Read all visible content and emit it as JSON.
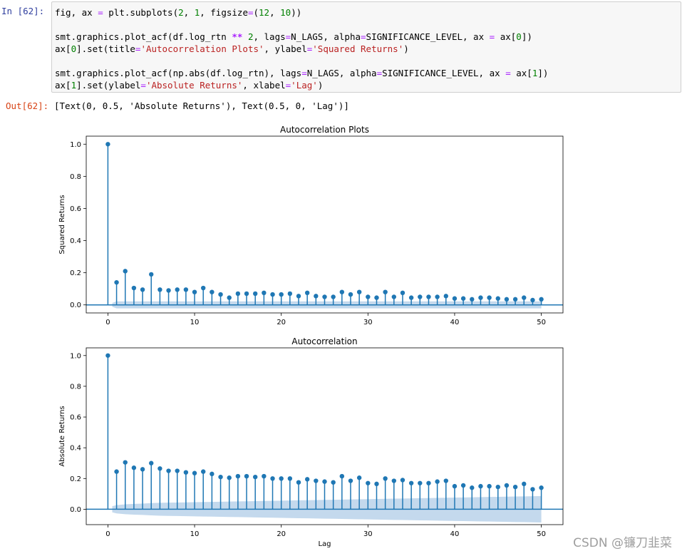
{
  "cell": {
    "in_prompt": "In  [62]:",
    "out_prompt": "Out[62]:",
    "code": {
      "l1": {
        "a": "fig, ax ",
        "b": "=",
        "c": " plt.subplots(",
        "d": "2",
        "e": ", ",
        "f": "1",
        "g": ", figsize",
        "h": "=",
        "i": "(",
        "j": "12",
        "k": ", ",
        "l": "10",
        "m": "))"
      },
      "l3": {
        "a": "smt.graphics.plot_acf(df.log_rtn ",
        "b": "**",
        "c": " ",
        "d": "2",
        "e": ", lags",
        "f": "=",
        "g": "N_LAGS, alpha",
        "h": "=",
        "i": "SIGNIFICANCE_LEVEL, ax ",
        "j": "=",
        "k": " ax[",
        "l": "0",
        "m": "])"
      },
      "l4": {
        "a": "ax[",
        "b": "0",
        "c": "].set(title",
        "d": "=",
        "e": "'Autocorrelation Plots'",
        "f": ", ylabel",
        "g": "=",
        "h": "'Squared Returns'",
        "i": ")"
      },
      "l6": {
        "a": "smt.graphics.plot_acf(np.abs(df.log_rtn), lags",
        "b": "=",
        "c": "N_LAGS, alpha",
        "d": "=",
        "e": "SIGNIFICANCE_LEVEL, ax ",
        "f": "=",
        "g": " ax[",
        "h": "1",
        "i": "])"
      },
      "l7": {
        "a": "ax[",
        "b": "1",
        "c": "].set(ylabel",
        "d": "=",
        "e": "'Absolute Returns'",
        "f": ", xlabel",
        "g": "=",
        "h": "'Lag'",
        "i": ")"
      }
    },
    "output_text": "[Text(0, 0.5, 'Absolute Returns'), Text(0.5, 0, 'Lag')]"
  },
  "watermark": "CSDN @镰刀韭菜",
  "colors": {
    "stem": "#1f77b4",
    "band": "#c4d9ed",
    "axis": "#000000"
  },
  "chart_data": [
    {
      "type": "scatter",
      "style": "stem",
      "title": "Autocorrelation Plots",
      "xlabel": "",
      "ylabel": "Squared Returns",
      "xlim": [
        -2.5,
        52.5
      ],
      "ylim": [
        -0.05,
        1.05
      ],
      "xticks": [
        0,
        10,
        20,
        30,
        40,
        50
      ],
      "yticks": [
        "0.0",
        "0.2",
        "0.4",
        "0.6",
        "0.8",
        "1.0"
      ],
      "x": [
        0,
        1,
        2,
        3,
        4,
        5,
        6,
        7,
        8,
        9,
        10,
        11,
        12,
        13,
        14,
        15,
        16,
        17,
        18,
        19,
        20,
        21,
        22,
        23,
        24,
        25,
        26,
        27,
        28,
        29,
        30,
        31,
        32,
        33,
        34,
        35,
        36,
        37,
        38,
        39,
        40,
        41,
        42,
        43,
        44,
        45,
        46,
        47,
        48,
        49,
        50
      ],
      "values": [
        1.0,
        0.14,
        0.21,
        0.105,
        0.095,
        0.19,
        0.095,
        0.09,
        0.095,
        0.095,
        0.08,
        0.105,
        0.08,
        0.065,
        0.045,
        0.07,
        0.07,
        0.07,
        0.075,
        0.065,
        0.065,
        0.07,
        0.055,
        0.075,
        0.055,
        0.05,
        0.05,
        0.08,
        0.065,
        0.08,
        0.05,
        0.045,
        0.08,
        0.05,
        0.075,
        0.045,
        0.05,
        0.05,
        0.05,
        0.055,
        0.04,
        0.04,
        0.035,
        0.045,
        0.045,
        0.04,
        0.035,
        0.035,
        0.045,
        0.03,
        0.035
      ],
      "confidence_band": [
        0.012,
        0.022,
        0.022,
        0.022,
        0.022,
        0.022,
        0.022,
        0.022,
        0.022,
        0.022,
        0.022,
        0.022,
        0.022,
        0.022,
        0.022,
        0.022,
        0.022,
        0.022,
        0.022,
        0.022,
        0.022,
        0.022,
        0.022,
        0.022,
        0.022,
        0.022,
        0.022,
        0.022,
        0.022,
        0.022,
        0.022,
        0.022,
        0.022,
        0.022,
        0.022,
        0.022,
        0.022,
        0.022,
        0.022,
        0.022,
        0.022,
        0.022,
        0.022,
        0.022,
        0.022,
        0.022,
        0.022,
        0.022,
        0.022,
        0.022,
        0.022
      ]
    },
    {
      "type": "scatter",
      "style": "stem",
      "title": "Autocorrelation",
      "xlabel": "Lag",
      "ylabel": "Absolute Returns",
      "xlim": [
        -2.5,
        52.5
      ],
      "ylim": [
        -0.1,
        1.05
      ],
      "xticks": [
        0,
        10,
        20,
        30,
        40,
        50
      ],
      "yticks": [
        "0.0",
        "0.2",
        "0.4",
        "0.6",
        "0.8",
        "1.0"
      ],
      "x": [
        0,
        1,
        2,
        3,
        4,
        5,
        6,
        7,
        8,
        9,
        10,
        11,
        12,
        13,
        14,
        15,
        16,
        17,
        18,
        19,
        20,
        21,
        22,
        23,
        24,
        25,
        26,
        27,
        28,
        29,
        30,
        31,
        32,
        33,
        34,
        35,
        36,
        37,
        38,
        39,
        40,
        41,
        42,
        43,
        44,
        45,
        46,
        47,
        48,
        49,
        50
      ],
      "values": [
        1.0,
        0.245,
        0.305,
        0.27,
        0.26,
        0.3,
        0.265,
        0.25,
        0.25,
        0.24,
        0.235,
        0.245,
        0.23,
        0.21,
        0.205,
        0.215,
        0.215,
        0.21,
        0.215,
        0.2,
        0.2,
        0.2,
        0.175,
        0.195,
        0.185,
        0.18,
        0.175,
        0.215,
        0.185,
        0.205,
        0.17,
        0.165,
        0.2,
        0.185,
        0.19,
        0.17,
        0.17,
        0.17,
        0.18,
        0.185,
        0.15,
        0.155,
        0.14,
        0.15,
        0.15,
        0.145,
        0.155,
        0.145,
        0.165,
        0.13,
        0.14
      ],
      "confidence_band": [
        0.02,
        0.027,
        0.032,
        0.035,
        0.037,
        0.04,
        0.042,
        0.043,
        0.044,
        0.045,
        0.046,
        0.047,
        0.048,
        0.049,
        0.05,
        0.051,
        0.052,
        0.053,
        0.054,
        0.055,
        0.056,
        0.057,
        0.058,
        0.059,
        0.06,
        0.061,
        0.062,
        0.063,
        0.064,
        0.065,
        0.066,
        0.067,
        0.068,
        0.069,
        0.07,
        0.071,
        0.072,
        0.073,
        0.074,
        0.075,
        0.076,
        0.077,
        0.078,
        0.079,
        0.08,
        0.081,
        0.082,
        0.083,
        0.084,
        0.085,
        0.086
      ]
    }
  ]
}
